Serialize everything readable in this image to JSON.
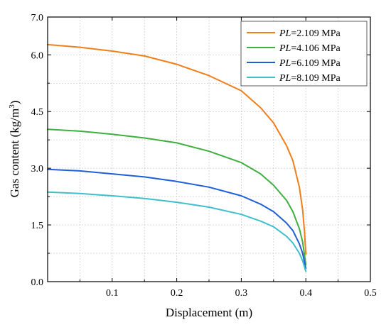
{
  "chart_data": {
    "type": "line",
    "title": "",
    "xlabel": "Displacement (m)",
    "ylabel_main": "Gas content (kg/m",
    "ylabel_sup": "3",
    "ylabel_close": ")",
    "xlim": [
      0,
      0.5
    ],
    "ylim": [
      0,
      7.0
    ],
    "x_ticks": [
      0.1,
      0.2,
      0.3,
      0.4,
      0.5
    ],
    "x_tick_labels": [
      "0.1",
      "0.2",
      "0.3",
      "0.4",
      "0.5"
    ],
    "y_ticks": [
      0,
      1.5,
      3.0,
      4.5,
      6.0,
      7.0
    ],
    "y_tick_labels": [
      "0.0",
      "1.5",
      "3.0",
      "4.5",
      "6.0",
      "7.0"
    ],
    "grid": true,
    "legend_position": "top-right",
    "legend_prefix": "PL",
    "series": [
      {
        "name": "=2.109 MPa",
        "color": "#F07F1A",
        "points": [
          [
            0,
            6.27
          ],
          [
            0.05,
            6.2
          ],
          [
            0.1,
            6.1
          ],
          [
            0.15,
            5.97
          ],
          [
            0.2,
            5.75
          ],
          [
            0.25,
            5.45
          ],
          [
            0.3,
            5.05
          ],
          [
            0.33,
            4.6
          ],
          [
            0.35,
            4.2
          ],
          [
            0.37,
            3.6
          ],
          [
            0.38,
            3.2
          ],
          [
            0.39,
            2.5
          ],
          [
            0.395,
            1.9
          ],
          [
            0.398,
            1.3
          ],
          [
            0.4,
            0.72
          ]
        ]
      },
      {
        "name": "=4.106 MPa",
        "color": "#3FAF3F",
        "points": [
          [
            0,
            4.03
          ],
          [
            0.05,
            3.98
          ],
          [
            0.1,
            3.9
          ],
          [
            0.15,
            3.8
          ],
          [
            0.2,
            3.67
          ],
          [
            0.25,
            3.45
          ],
          [
            0.3,
            3.15
          ],
          [
            0.33,
            2.85
          ],
          [
            0.35,
            2.55
          ],
          [
            0.37,
            2.15
          ],
          [
            0.38,
            1.85
          ],
          [
            0.39,
            1.4
          ],
          [
            0.395,
            1.05
          ],
          [
            0.4,
            0.45
          ]
        ]
      },
      {
        "name": "=6.109 MPa",
        "color": "#1E5FD8",
        "points": [
          [
            0,
            2.97
          ],
          [
            0.05,
            2.93
          ],
          [
            0.1,
            2.85
          ],
          [
            0.15,
            2.77
          ],
          [
            0.2,
            2.65
          ],
          [
            0.25,
            2.5
          ],
          [
            0.3,
            2.27
          ],
          [
            0.33,
            2.05
          ],
          [
            0.35,
            1.85
          ],
          [
            0.37,
            1.55
          ],
          [
            0.38,
            1.35
          ],
          [
            0.39,
            1.0
          ],
          [
            0.395,
            0.75
          ],
          [
            0.4,
            0.35
          ]
        ]
      },
      {
        "name": "=8.109 MPa",
        "color": "#3FBFCB",
        "points": [
          [
            0,
            2.37
          ],
          [
            0.05,
            2.33
          ],
          [
            0.1,
            2.27
          ],
          [
            0.15,
            2.2
          ],
          [
            0.2,
            2.1
          ],
          [
            0.25,
            1.97
          ],
          [
            0.3,
            1.78
          ],
          [
            0.33,
            1.6
          ],
          [
            0.35,
            1.45
          ],
          [
            0.37,
            1.2
          ],
          [
            0.38,
            1.02
          ],
          [
            0.39,
            0.75
          ],
          [
            0.395,
            0.55
          ],
          [
            0.4,
            0.27
          ]
        ]
      }
    ]
  }
}
